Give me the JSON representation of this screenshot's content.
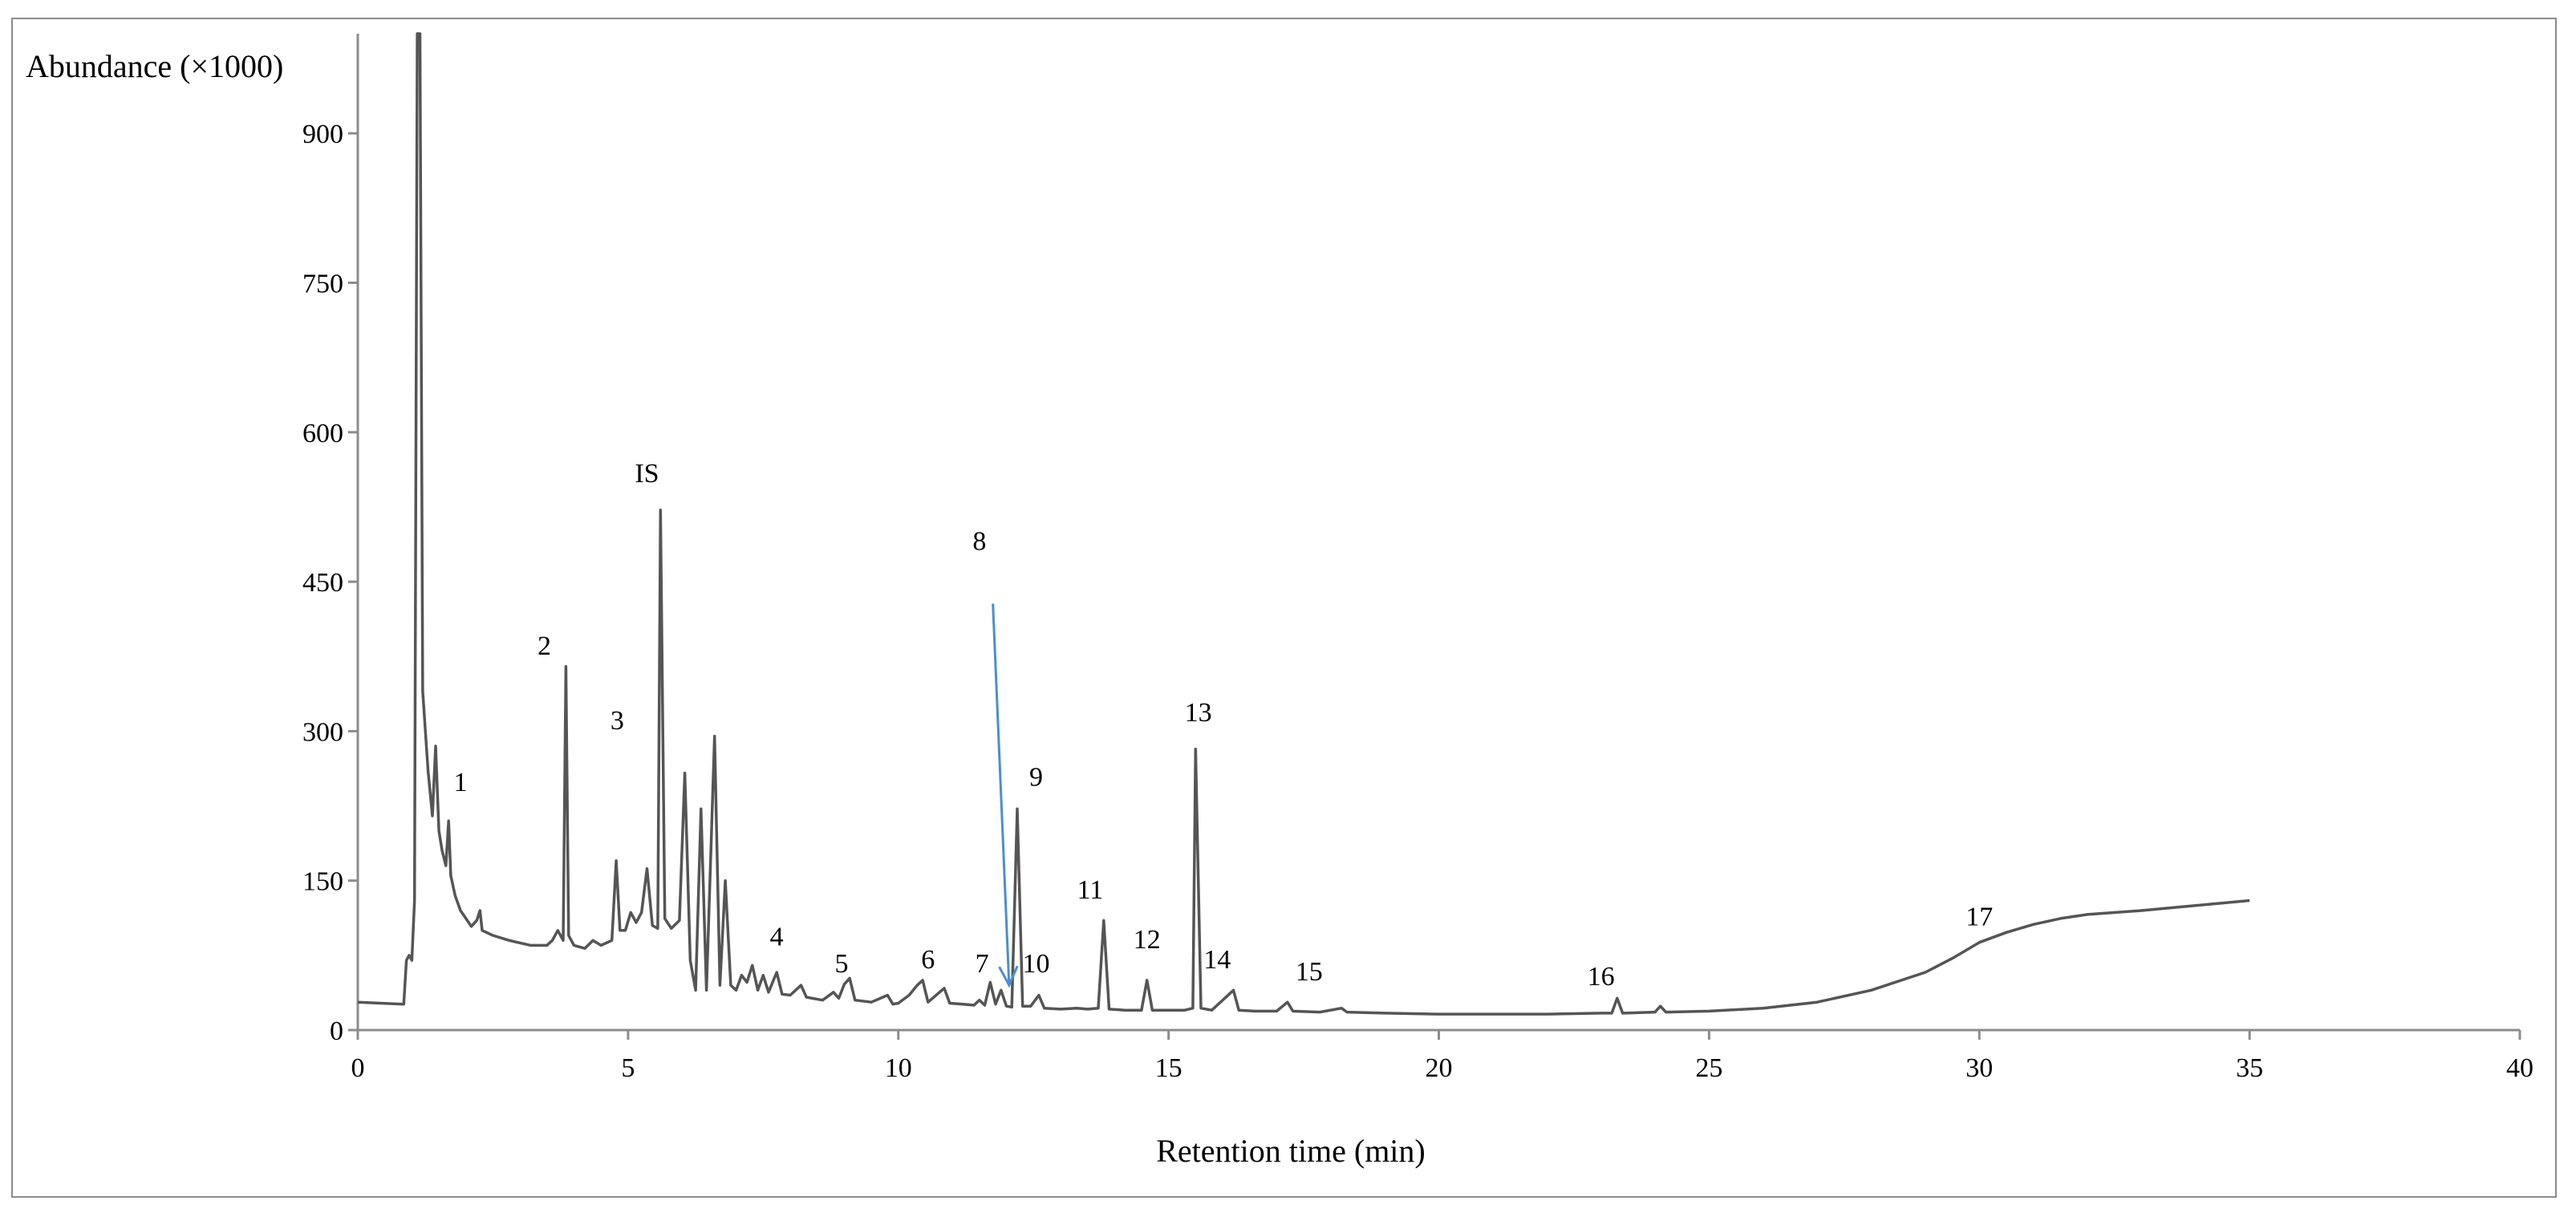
{
  "chart_data": {
    "type": "line",
    "title": "",
    "xlabel": "Retention time (min)",
    "ylabel": "Abundance (×1000)",
    "xlim": [
      0,
      40
    ],
    "ylim": [
      0,
      1000
    ],
    "x_ticks": [
      0,
      5,
      10,
      15,
      20,
      25,
      30,
      35,
      40
    ],
    "y_ticks": [
      0,
      150,
      300,
      450,
      600,
      750,
      900
    ],
    "grid": false,
    "legend": "none",
    "line_color": "#555555",
    "arrow_color": "#4a8fd0",
    "series": [
      {
        "values": [
          [
            0.0,
            28
          ],
          [
            0.85,
            26
          ],
          [
            0.9,
            70
          ],
          [
            0.95,
            75
          ],
          [
            1.0,
            70
          ],
          [
            1.05,
            130
          ],
          [
            1.1,
            1000
          ],
          [
            1.15,
            1000
          ],
          [
            1.2,
            340
          ],
          [
            1.3,
            260
          ],
          [
            1.38,
            215
          ],
          [
            1.44,
            285
          ],
          [
            1.5,
            200
          ],
          [
            1.56,
            180
          ],
          [
            1.63,
            165
          ],
          [
            1.68,
            210
          ],
          [
            1.72,
            155
          ],
          [
            1.8,
            135
          ],
          [
            1.9,
            120
          ],
          [
            2.0,
            112
          ],
          [
            2.1,
            104
          ],
          [
            2.2,
            110
          ],
          [
            2.26,
            120
          ],
          [
            2.3,
            100
          ],
          [
            2.5,
            95
          ],
          [
            2.8,
            90
          ],
          [
            3.2,
            85
          ],
          [
            3.5,
            85
          ],
          [
            3.6,
            90
          ],
          [
            3.7,
            100
          ],
          [
            3.8,
            90
          ],
          [
            3.85,
            365
          ],
          [
            3.9,
            95
          ],
          [
            4.0,
            85
          ],
          [
            4.2,
            82
          ],
          [
            4.35,
            90
          ],
          [
            4.5,
            85
          ],
          [
            4.7,
            90
          ],
          [
            4.78,
            170
          ],
          [
            4.85,
            100
          ],
          [
            4.95,
            100
          ],
          [
            5.05,
            118
          ],
          [
            5.15,
            108
          ],
          [
            5.25,
            118
          ],
          [
            5.35,
            162
          ],
          [
            5.45,
            105
          ],
          [
            5.55,
            102
          ],
          [
            5.6,
            522
          ],
          [
            5.68,
            112
          ],
          [
            5.8,
            102
          ],
          [
            5.95,
            110
          ],
          [
            6.05,
            258
          ],
          [
            6.15,
            70
          ],
          [
            6.25,
            40
          ],
          [
            6.35,
            222
          ],
          [
            6.45,
            40
          ],
          [
            6.6,
            295
          ],
          [
            6.7,
            45
          ],
          [
            6.8,
            150
          ],
          [
            6.9,
            45
          ],
          [
            7.0,
            40
          ],
          [
            7.1,
            55
          ],
          [
            7.2,
            48
          ],
          [
            7.3,
            65
          ],
          [
            7.4,
            40
          ],
          [
            7.5,
            55
          ],
          [
            7.6,
            38
          ],
          [
            7.75,
            58
          ],
          [
            7.85,
            36
          ],
          [
            8.0,
            35
          ],
          [
            8.2,
            45
          ],
          [
            8.3,
            33
          ],
          [
            8.6,
            30
          ],
          [
            8.8,
            38
          ],
          [
            8.9,
            32
          ],
          [
            9.0,
            46
          ],
          [
            9.1,
            52
          ],
          [
            9.2,
            30
          ],
          [
            9.5,
            28
          ],
          [
            9.8,
            35
          ],
          [
            9.9,
            26
          ],
          [
            10.0,
            27
          ],
          [
            10.2,
            35
          ],
          [
            10.35,
            45
          ],
          [
            10.45,
            50
          ],
          [
            10.55,
            28
          ],
          [
            10.85,
            42
          ],
          [
            10.95,
            27
          ],
          [
            11.2,
            26
          ],
          [
            11.4,
            25
          ],
          [
            11.5,
            30
          ],
          [
            11.6,
            25
          ],
          [
            11.7,
            48
          ],
          [
            11.8,
            26
          ],
          [
            11.9,
            40
          ],
          [
            12.0,
            24
          ],
          [
            12.1,
            23
          ],
          [
            12.2,
            222
          ],
          [
            12.3,
            24
          ],
          [
            12.45,
            24
          ],
          [
            12.6,
            35
          ],
          [
            12.7,
            22
          ],
          [
            13.0,
            21
          ],
          [
            13.3,
            22
          ],
          [
            13.5,
            21
          ],
          [
            13.7,
            22
          ],
          [
            13.8,
            110
          ],
          [
            13.9,
            21
          ],
          [
            14.2,
            20
          ],
          [
            14.5,
            20
          ],
          [
            14.6,
            50
          ],
          [
            14.7,
            20
          ],
          [
            15.0,
            20
          ],
          [
            15.3,
            20
          ],
          [
            15.45,
            22
          ],
          [
            15.5,
            282
          ],
          [
            15.6,
            22
          ],
          [
            15.8,
            20
          ],
          [
            16.2,
            40
          ],
          [
            16.3,
            20
          ],
          [
            16.6,
            19
          ],
          [
            17.0,
            19
          ],
          [
            17.2,
            28
          ],
          [
            17.3,
            19
          ],
          [
            17.8,
            18
          ],
          [
            18.2,
            22
          ],
          [
            18.3,
            18
          ],
          [
            19.0,
            17
          ],
          [
            20.0,
            16
          ],
          [
            21.0,
            16
          ],
          [
            22.0,
            16
          ],
          [
            23.0,
            17
          ],
          [
            23.2,
            17
          ],
          [
            23.3,
            32
          ],
          [
            23.4,
            17
          ],
          [
            24.0,
            18
          ],
          [
            24.1,
            24
          ],
          [
            24.2,
            18
          ],
          [
            25.0,
            19
          ],
          [
            26.0,
            22
          ],
          [
            27.0,
            28
          ],
          [
            28.0,
            40
          ],
          [
            29.0,
            58
          ],
          [
            29.5,
            72
          ],
          [
            30.0,
            88
          ],
          [
            30.5,
            98
          ],
          [
            31.0,
            106
          ],
          [
            31.5,
            112
          ],
          [
            32.0,
            116
          ],
          [
            33.0,
            120
          ],
          [
            34.0,
            125
          ],
          [
            35.0,
            130
          ]
        ]
      }
    ],
    "peak_labels": [
      {
        "text": "1",
        "x": 1.9,
        "y": 240
      },
      {
        "text": "2",
        "x": 3.45,
        "y": 377
      },
      {
        "text": "3",
        "x": 4.8,
        "y": 302
      },
      {
        "text": "IS",
        "x": 5.35,
        "y": 550
      },
      {
        "text": "4",
        "x": 7.75,
        "y": 85
      },
      {
        "text": "5",
        "x": 8.95,
        "y": 58
      },
      {
        "text": "6",
        "x": 10.55,
        "y": 62
      },
      {
        "text": "7",
        "x": 11.55,
        "y": 58
      },
      {
        "text": "8",
        "x": 11.5,
        "y": 482
      },
      {
        "text": "9",
        "x": 12.55,
        "y": 245
      },
      {
        "text": "10",
        "x": 12.55,
        "y": 58
      },
      {
        "text": "11",
        "x": 13.55,
        "y": 132
      },
      {
        "text": "12",
        "x": 14.6,
        "y": 82
      },
      {
        "text": "13",
        "x": 15.55,
        "y": 310
      },
      {
        "text": "14",
        "x": 15.9,
        "y": 62
      },
      {
        "text": "15",
        "x": 17.6,
        "y": 50
      },
      {
        "text": "16",
        "x": 23.0,
        "y": 45
      },
      {
        "text": "17",
        "x": 30.0,
        "y": 105
      }
    ],
    "arrow": {
      "from": [
        11.75,
        428
      ],
      "to": [
        12.05,
        45
      ]
    }
  }
}
